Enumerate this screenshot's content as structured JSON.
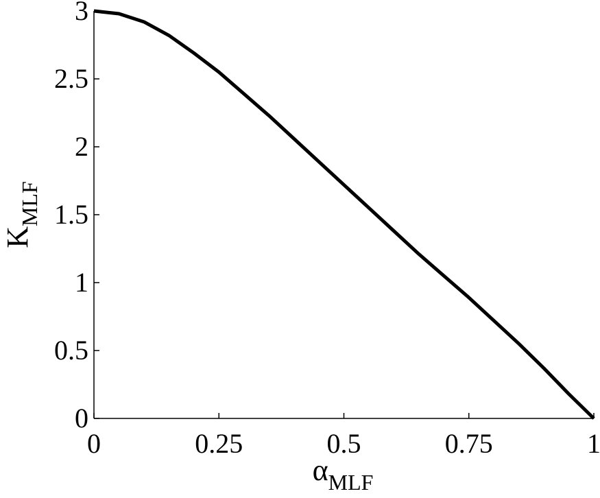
{
  "chart_data": {
    "type": "line",
    "xlabel": {
      "text": "α",
      "subscript": "MLF"
    },
    "ylabel": {
      "text": "K",
      "subscript": "MLF"
    },
    "x": [
      0,
      0.05,
      0.1,
      0.15,
      0.2,
      0.25,
      0.3,
      0.35,
      0.4,
      0.45,
      0.5,
      0.55,
      0.6,
      0.65,
      0.7,
      0.75,
      0.8,
      0.85,
      0.9,
      0.95,
      1
    ],
    "series": [
      {
        "color": "#000000",
        "values": [
          3,
          2.98,
          2.92,
          2.82,
          2.69,
          2.55,
          2.39,
          2.23,
          2.06,
          1.89,
          1.72,
          1.55,
          1.38,
          1.21,
          1.05,
          0.89,
          0.72,
          0.55,
          0.37,
          0.18,
          0
        ]
      }
    ],
    "xlim": [
      0,
      1
    ],
    "ylim": [
      0,
      3
    ],
    "xticks": [
      0,
      0.25,
      0.5,
      0.75,
      1
    ],
    "yticks": [
      0,
      0.5,
      1,
      1.5,
      2,
      2.5,
      3
    ]
  }
}
